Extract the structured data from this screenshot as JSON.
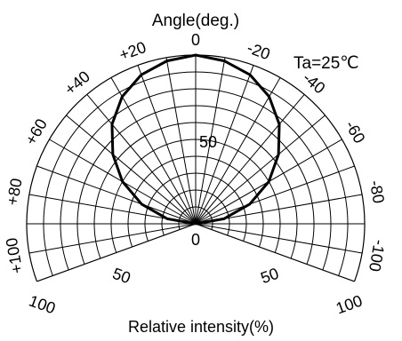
{
  "chart_data": {
    "type": "polar",
    "title": "Angle(deg.)",
    "xlabel": "Relative intensity(%)",
    "annotation": "Ta=25℃",
    "angle_ticks": [
      "0",
      "-20",
      "-40",
      "-60",
      "-80",
      "-100",
      "+20",
      "+40",
      "+60",
      "+80",
      "+100"
    ],
    "angle_values": [
      0,
      -20,
      -40,
      -60,
      -80,
      -100,
      20,
      40,
      60,
      80,
      100
    ],
    "radial_ticks": [
      "0",
      "50",
      "100"
    ],
    "radial_range": [
      0,
      100
    ],
    "angle_range": [
      -110,
      110
    ],
    "grid": true,
    "series": [
      {
        "angles": [
          -90,
          -80,
          -70,
          -60,
          -50,
          -40,
          -30,
          -20,
          -10,
          0,
          10,
          20,
          30,
          40,
          50,
          60,
          70,
          80,
          90
        ],
        "values": [
          0,
          17,
          34,
          50,
          64,
          77,
          87,
          94,
          98,
          100,
          98,
          94,
          87,
          77,
          64,
          50,
          34,
          17,
          0
        ]
      }
    ]
  }
}
